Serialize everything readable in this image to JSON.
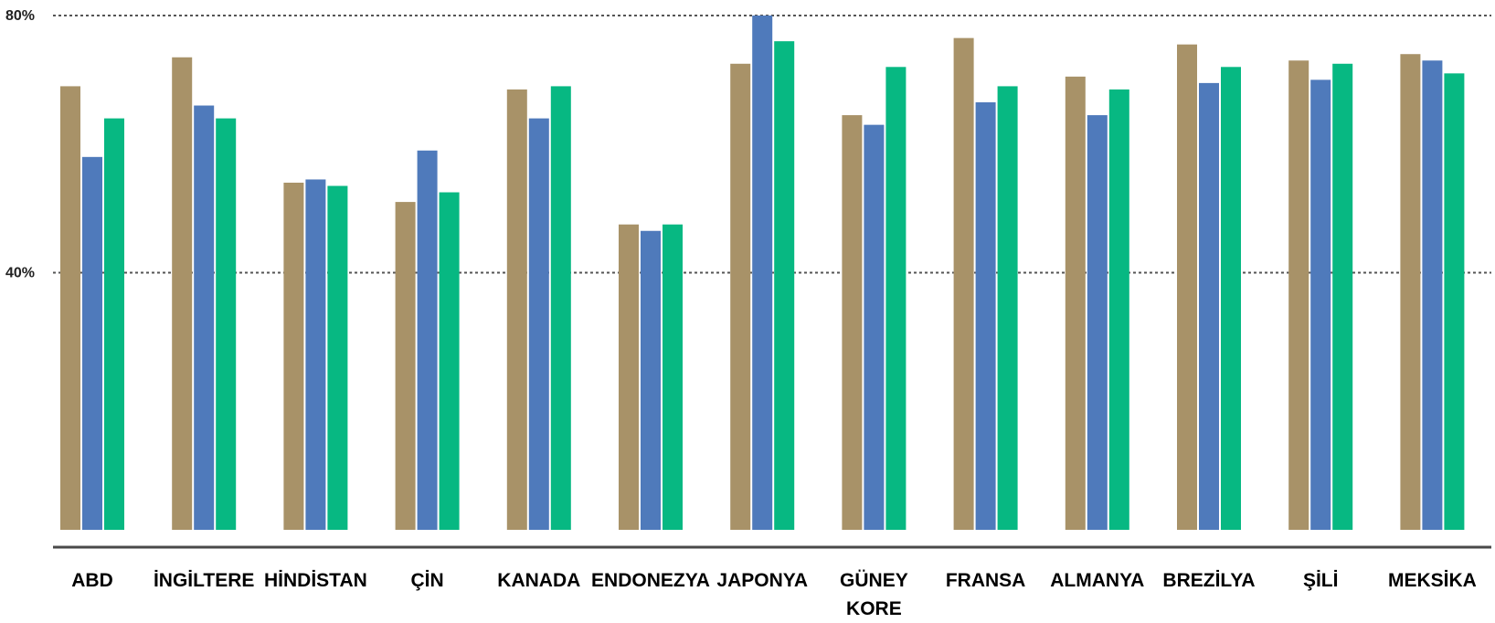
{
  "chart_data": {
    "type": "bar",
    "title": "",
    "xlabel": "",
    "ylabel": "",
    "categories": [
      "ABD",
      "İNGİLTERE",
      "HİNDİSTAN",
      "ÇİN",
      "KANADA",
      "ENDONEZYA",
      "JAPONYA",
      "GÜNEY KORE",
      "FRANSA",
      "ALMANYA",
      "BREZİLYA",
      "ŞİLİ",
      "MEKSİKA"
    ],
    "series": [
      {
        "color": "#a89268",
        "values": [
          69,
          73.5,
          54,
          51,
          68.5,
          47.5,
          72.5,
          64.5,
          76.5,
          70.5,
          75.5,
          73,
          74
        ]
      },
      {
        "color": "#4f7abb",
        "values": [
          58,
          66,
          54.5,
          59,
          64,
          46.5,
          80,
          63,
          66.5,
          64.5,
          69.5,
          70,
          73
        ]
      },
      {
        "color": "#07b882",
        "values": [
          64,
          64,
          53.5,
          52.5,
          69,
          47.5,
          76,
          72,
          69,
          68.5,
          72,
          72.5,
          71
        ]
      }
    ],
    "yticks": [
      {
        "value": 80,
        "label": "80%"
      },
      {
        "value": 40,
        "label": "40%"
      }
    ],
    "ylim": [
      0,
      80
    ],
    "grid": true,
    "legend": "none"
  }
}
